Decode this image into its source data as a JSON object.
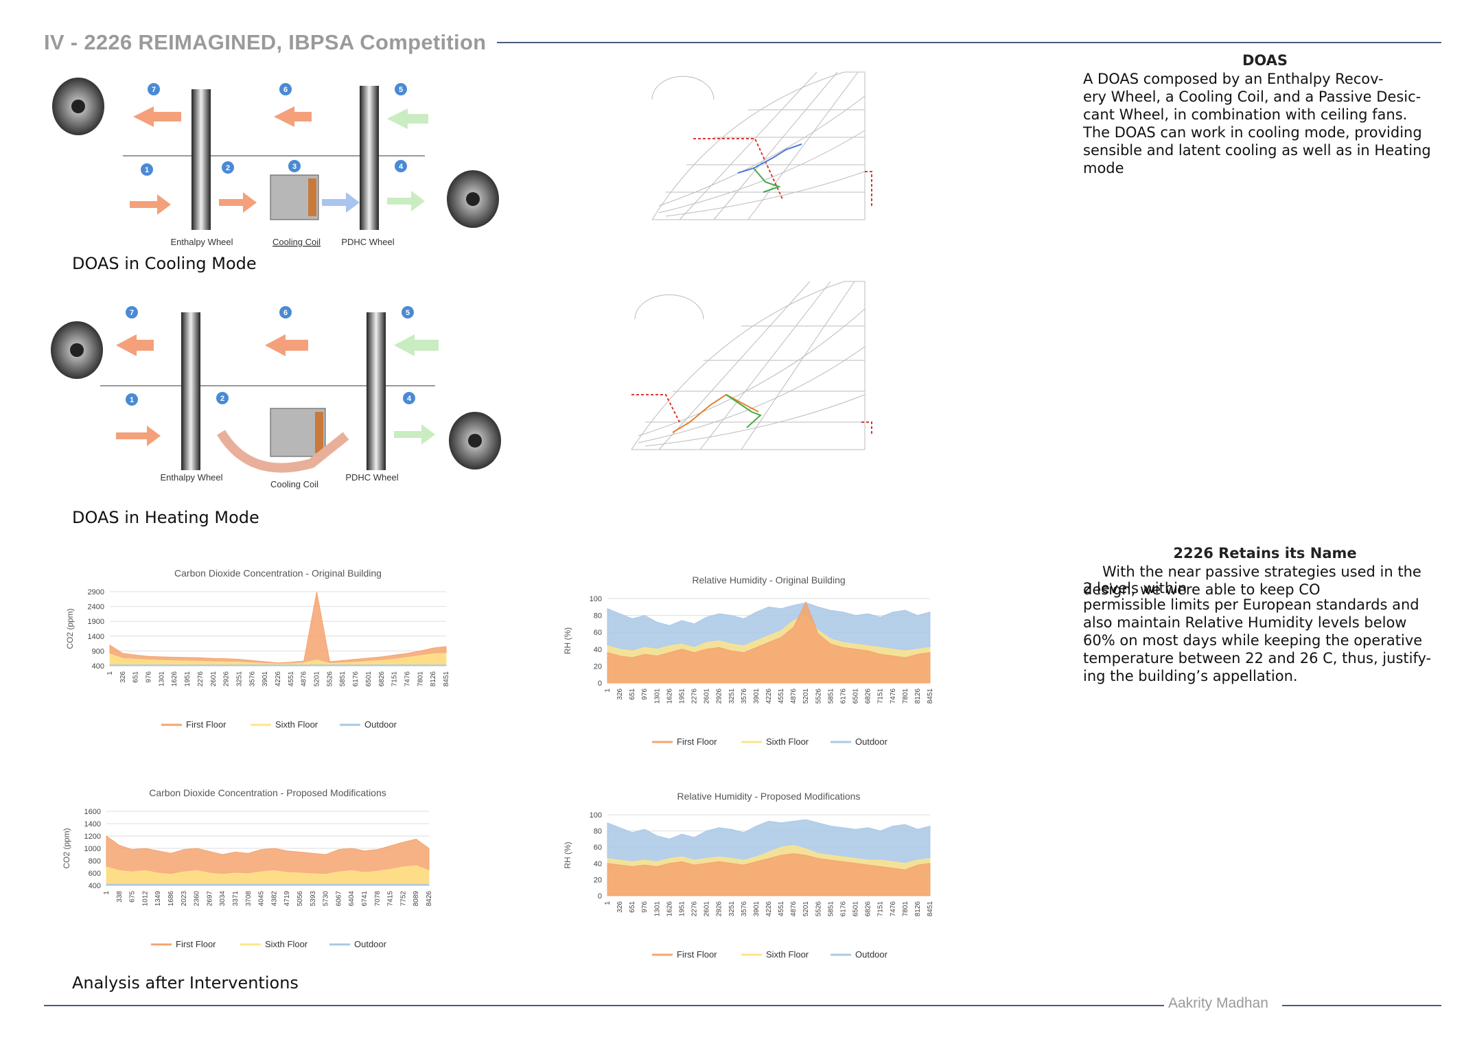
{
  "header": {
    "title": "IV - 2226 REIMAGINED, IBPSA Competition"
  },
  "cooling_diagram": {
    "labels": {
      "enthalpy": "Enthalpy Wheel",
      "coil": "Cooling Coil",
      "pdhc": "PDHC Wheel"
    },
    "numbers": [
      "1",
      "2",
      "3",
      "4",
      "5",
      "6",
      "7"
    ],
    "caption": "DOAS in Cooling Mode"
  },
  "heating_diagram": {
    "labels": {
      "enthalpy": "Enthalpy Wheel",
      "coil": "Cooling Coil",
      "pdhc": "PDHC Wheel"
    },
    "numbers": [
      "1",
      "2",
      "4",
      "5",
      "6",
      "7"
    ],
    "caption": "DOAS in Heating Mode"
  },
  "analysis": {
    "caption": "Analysis after Interventions"
  },
  "doas": {
    "title": "DOAS",
    "lines": [
      "A DOAS composed by an Enthalpy Recov-",
      "ery Wheel, a Cooling Coil, and a Passive Desic-",
      "cant Wheel, in combination with ceiling fans.",
      "The DOAS can work in cooling mode, providing",
      "sensible and latent cooling as well as in Heating",
      "mode"
    ]
  },
  "retains": {
    "title": "2226 Retains its Name",
    "lines": [
      "With the near passive strategies used in the",
      "design, we were able to keep CO",
      "permissible limits per European standards and",
      "also maintain Relative Humidity levels below",
      "60% on most days while keeping the operative",
      "temperature between 22 and 26 C, thus, justify-",
      "ing the building’s appellation."
    ],
    "overlap_text": "2 levels within"
  },
  "footer": {
    "author": "Aakrity Madhan"
  },
  "colors": {
    "first_floor": "#f4a46e",
    "sixth_floor": "#ffe48a",
    "outdoor": "#a9c8e6",
    "rule": "#4a5a7a"
  },
  "chart_data": [
    {
      "type": "area",
      "title": "Carbon Dioxide Concentration - Original Building",
      "ylabel": "CO2 (ppm)",
      "yticks": [
        "2900",
        "2400",
        "1900",
        "1400",
        "900",
        "400"
      ],
      "ylim": [
        400,
        2900
      ],
      "xticks": [
        "1",
        "326",
        "651",
        "976",
        "1301",
        "1626",
        "1951",
        "2276",
        "2601",
        "2926",
        "3251",
        "3576",
        "3901",
        "4226",
        "4551",
        "4876",
        "5201",
        "5526",
        "5851",
        "6176",
        "6501",
        "6826",
        "7151",
        "7476",
        "7801",
        "8126",
        "8451"
      ],
      "series": [
        {
          "name": "First Floor",
          "color": "#f4a46e",
          "values": [
            1100,
            820,
            760,
            720,
            700,
            690,
            680,
            670,
            650,
            640,
            620,
            580,
            540,
            500,
            520,
            560,
            2900,
            540,
            580,
            620,
            660,
            700,
            760,
            820,
            900,
            1000,
            1050
          ]
        },
        {
          "name": "Sixth Floor",
          "color": "#ffe48a",
          "values": [
            800,
            650,
            620,
            600,
            580,
            570,
            560,
            550,
            540,
            530,
            520,
            500,
            480,
            460,
            470,
            500,
            600,
            480,
            500,
            520,
            550,
            580,
            620,
            680,
            740,
            800,
            820
          ]
        },
        {
          "name": "Outdoor",
          "color": "#a9c8e6",
          "values": [
            430,
            430,
            430,
            430,
            430,
            430,
            430,
            430,
            430,
            430,
            430,
            430,
            430,
            430,
            430,
            430,
            430,
            430,
            430,
            430,
            430,
            430,
            430,
            430,
            430,
            430,
            430
          ]
        }
      ]
    },
    {
      "type": "area",
      "title": "Relative Humidity - Original Building",
      "ylabel": "RH (%)",
      "yticks": [
        "100",
        "80",
        "60",
        "40",
        "20",
        "0"
      ],
      "ylim": [
        0,
        100
      ],
      "xticks": [
        "1",
        "326",
        "651",
        "976",
        "1301",
        "1626",
        "1951",
        "2276",
        "2601",
        "2926",
        "3251",
        "3576",
        "3901",
        "4226",
        "4551",
        "4876",
        "5201",
        "5526",
        "5851",
        "6176",
        "6501",
        "6826",
        "7151",
        "7476",
        "7801",
        "8126",
        "8451"
      ],
      "series": [
        {
          "name": "Outdoor",
          "color": "#a9c8e6",
          "values": [
            88,
            82,
            76,
            80,
            72,
            68,
            74,
            70,
            78,
            82,
            80,
            76,
            84,
            90,
            88,
            92,
            95,
            90,
            86,
            84,
            80,
            82,
            78,
            84,
            86,
            80,
            84
          ]
        },
        {
          "name": "Sixth Floor",
          "color": "#ffe48a",
          "values": [
            44,
            40,
            38,
            42,
            40,
            44,
            46,
            42,
            48,
            50,
            46,
            44,
            50,
            56,
            62,
            74,
            80,
            62,
            52,
            48,
            46,
            44,
            42,
            40,
            38,
            40,
            42
          ]
        },
        {
          "name": "First Floor",
          "color": "#f4a46e",
          "values": [
            36,
            32,
            30,
            34,
            32,
            36,
            40,
            36,
            40,
            42,
            38,
            36,
            42,
            48,
            54,
            66,
            96,
            58,
            46,
            42,
            40,
            38,
            34,
            32,
            30,
            34,
            36
          ]
        }
      ]
    },
    {
      "type": "area",
      "title": "Carbon Dioxide Concentration - Proposed Modifications",
      "ylabel": "CO2 (ppm)",
      "yticks": [
        "1600",
        "1400",
        "1200",
        "1000",
        "800",
        "600",
        "400"
      ],
      "ylim": [
        400,
        1600
      ],
      "xticks": [
        "1",
        "338",
        "675",
        "1012",
        "1349",
        "1686",
        "2023",
        "2360",
        "2697",
        "3034",
        "3371",
        "3708",
        "4045",
        "4382",
        "4719",
        "5056",
        "5393",
        "5730",
        "6067",
        "6404",
        "6741",
        "7078",
        "7415",
        "7752",
        "8089",
        "8426"
      ],
      "series": [
        {
          "name": "First Floor",
          "color": "#f4a46e",
          "values": [
            1200,
            1050,
            980,
            1000,
            960,
            920,
            980,
            1000,
            950,
            900,
            940,
            920,
            980,
            1000,
            960,
            940,
            920,
            900,
            980,
            1000,
            960,
            980,
            1040,
            1100,
            1150,
            1000
          ]
        },
        {
          "name": "Sixth Floor",
          "color": "#ffe48a",
          "values": [
            700,
            640,
            620,
            640,
            600,
            580,
            620,
            640,
            600,
            580,
            600,
            590,
            620,
            640,
            610,
            600,
            590,
            580,
            620,
            640,
            610,
            630,
            660,
            700,
            720,
            640
          ]
        },
        {
          "name": "Outdoor",
          "color": "#a9c8e6",
          "values": [
            420,
            420,
            420,
            420,
            420,
            420,
            420,
            420,
            420,
            420,
            420,
            420,
            420,
            420,
            420,
            420,
            420,
            420,
            420,
            420,
            420,
            420,
            420,
            420,
            420,
            420
          ]
        }
      ]
    },
    {
      "type": "area",
      "title": "Relative Humidity - Proposed Modifications",
      "ylabel": "RH (%)",
      "yticks": [
        "100",
        "80",
        "60",
        "40",
        "20",
        "0"
      ],
      "ylim": [
        0,
        100
      ],
      "xticks": [
        "1",
        "326",
        "651",
        "976",
        "1301",
        "1626",
        "1951",
        "2276",
        "2601",
        "2926",
        "3251",
        "3576",
        "3901",
        "4226",
        "4551",
        "4876",
        "5201",
        "5526",
        "5851",
        "6176",
        "6501",
        "6826",
        "7151",
        "7476",
        "7801",
        "8126",
        "8451"
      ],
      "series": [
        {
          "name": "Outdoor",
          "color": "#a9c8e6",
          "values": [
            90,
            84,
            78,
            82,
            74,
            70,
            76,
            72,
            80,
            84,
            82,
            78,
            86,
            92,
            90,
            92,
            94,
            90,
            86,
            84,
            82,
            84,
            80,
            86,
            88,
            82,
            86
          ]
        },
        {
          "name": "Sixth Floor",
          "color": "#ffe48a",
          "values": [
            46,
            44,
            42,
            44,
            42,
            46,
            48,
            44,
            46,
            48,
            46,
            44,
            48,
            54,
            60,
            62,
            58,
            52,
            50,
            48,
            46,
            44,
            44,
            42,
            40,
            44,
            46
          ]
        },
        {
          "name": "First Floor",
          "color": "#f4a46e",
          "values": [
            40,
            38,
            36,
            38,
            36,
            40,
            42,
            38,
            40,
            42,
            40,
            38,
            42,
            46,
            50,
            52,
            50,
            46,
            44,
            42,
            40,
            38,
            36,
            34,
            32,
            38,
            40
          ]
        }
      ]
    }
  ]
}
